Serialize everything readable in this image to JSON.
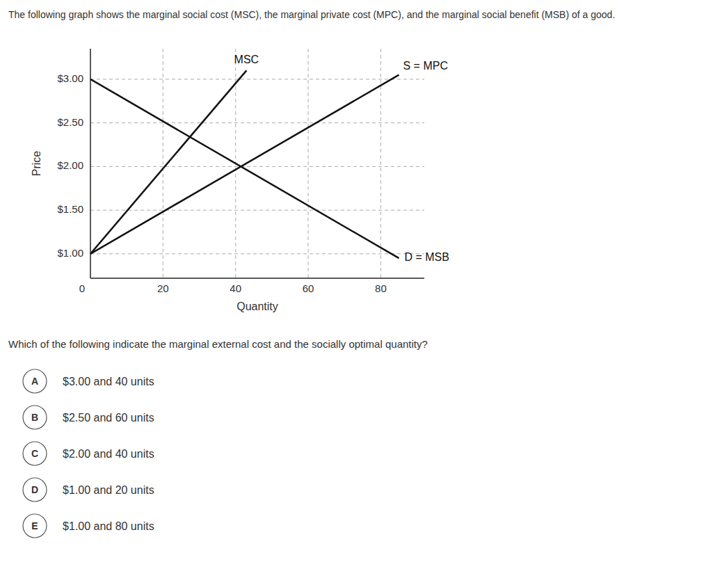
{
  "chart_data": {
    "type": "line",
    "title": "The following graph shows the marginal social cost (MSC), the marginal private cost (MPC), and the marginal social benefit (MSB) of a good.",
    "x_label": "Quantity",
    "y_label": "Price",
    "origin_label": "0",
    "xlim": [
      0,
      92
    ],
    "ylim": [
      0.72,
      3.35
    ],
    "xticks": [
      20,
      40,
      60,
      80
    ],
    "yticks": [
      {
        "value": 1.0,
        "label": "$1.00"
      },
      {
        "value": 1.5,
        "label": "$1.50"
      },
      {
        "value": 2.0,
        "label": "$2.00"
      },
      {
        "value": 2.5,
        "label": "$2.50"
      },
      {
        "value": 3.0,
        "label": "$3.00"
      }
    ],
    "grid": true,
    "series": [
      {
        "name": "MSC",
        "color": "#111111",
        "x": [
          0,
          43
        ],
        "values": [
          1.0,
          3.1
        ]
      },
      {
        "name": "S = MPC",
        "color": "#111111",
        "x": [
          0,
          85
        ],
        "values": [
          1.0,
          3.05
        ]
      },
      {
        "name": "D = MSB",
        "color": "#111111",
        "x": [
          0,
          85
        ],
        "values": [
          3.0,
          0.95
        ]
      }
    ],
    "question": "Which of the following indicate the marginal external cost and the socially optimal quantity?",
    "options": [
      {
        "letter": "A",
        "text": "$3.00 and 40 units"
      },
      {
        "letter": "B",
        "text": "$2.50 and 60 units"
      },
      {
        "letter": "C",
        "text": "$2.00 and 40 units"
      },
      {
        "letter": "D",
        "text": "$1.00 and 20 units"
      },
      {
        "letter": "E",
        "text": "$1.00 and 80 units"
      }
    ]
  }
}
